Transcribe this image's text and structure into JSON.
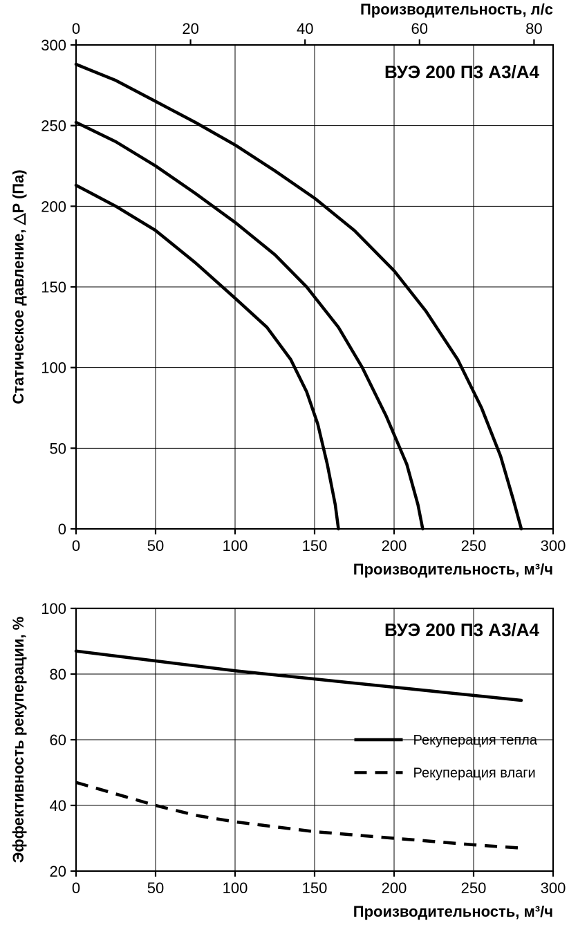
{
  "colors": {
    "background": "#ffffff",
    "axis": "#000000",
    "grid": "#000000",
    "curve": "#000000",
    "text": "#000000"
  },
  "top_chart": {
    "type": "line",
    "title": "ВУЭ 200 П3 А3/А4",
    "title_fontsize": 26,
    "title_fontweight": "bold",
    "x_bottom": {
      "label": "Производительность, м³/ч",
      "min": 0,
      "max": 300,
      "step": 50
    },
    "x_top": {
      "label": "Производительность, л/с",
      "min": 0,
      "max": 80,
      "step": 20
    },
    "y": {
      "label": "Статическое давление, △P (Па)",
      "min": 0,
      "max": 300,
      "step": 50
    },
    "axis_label_fontsize": 22,
    "tick_fontsize": 22,
    "line_width": 4.5,
    "axis_width": 2.2,
    "grid_width": 1,
    "curves": [
      {
        "name": "curve-low",
        "points": [
          [
            0,
            213
          ],
          [
            25,
            200
          ],
          [
            50,
            185
          ],
          [
            75,
            165
          ],
          [
            100,
            143
          ],
          [
            120,
            125
          ],
          [
            135,
            105
          ],
          [
            145,
            85
          ],
          [
            152,
            65
          ],
          [
            158,
            40
          ],
          [
            163,
            15
          ],
          [
            165,
            0
          ]
        ]
      },
      {
        "name": "curve-mid",
        "points": [
          [
            0,
            252
          ],
          [
            25,
            240
          ],
          [
            50,
            225
          ],
          [
            75,
            208
          ],
          [
            100,
            190
          ],
          [
            125,
            170
          ],
          [
            145,
            150
          ],
          [
            165,
            125
          ],
          [
            180,
            100
          ],
          [
            195,
            70
          ],
          [
            208,
            40
          ],
          [
            215,
            15
          ],
          [
            218,
            0
          ]
        ]
      },
      {
        "name": "curve-high",
        "points": [
          [
            0,
            288
          ],
          [
            25,
            278
          ],
          [
            50,
            265
          ],
          [
            75,
            252
          ],
          [
            100,
            238
          ],
          [
            125,
            222
          ],
          [
            150,
            205
          ],
          [
            175,
            185
          ],
          [
            200,
            160
          ],
          [
            220,
            135
          ],
          [
            240,
            105
          ],
          [
            255,
            75
          ],
          [
            267,
            45
          ],
          [
            275,
            18
          ],
          [
            280,
            0
          ]
        ]
      }
    ]
  },
  "bottom_chart": {
    "type": "line",
    "title": "ВУЭ 200 П3 А3/А4",
    "title_fontsize": 26,
    "title_fontweight": "bold",
    "x": {
      "label": "Производительность, м³/ч",
      "min": 0,
      "max": 300,
      "step": 50
    },
    "y": {
      "label": "Эффективность рекуперации, %",
      "min": 20,
      "max": 100,
      "step": 20
    },
    "axis_label_fontsize": 22,
    "tick_fontsize": 22,
    "line_width": 4.5,
    "axis_width": 2.2,
    "grid_width": 1,
    "legend": {
      "heat": "Рекуперация тепла",
      "moisture": "Рекуперация влаги",
      "fontsize": 20
    },
    "heat_curve": {
      "dash": "none",
      "points": [
        [
          0,
          87
        ],
        [
          50,
          84
        ],
        [
          100,
          81
        ],
        [
          150,
          78.5
        ],
        [
          200,
          76
        ],
        [
          250,
          73.5
        ],
        [
          280,
          72
        ]
      ]
    },
    "moisture_curve": {
      "dash": "18 12",
      "points": [
        [
          0,
          47
        ],
        [
          25,
          43.5
        ],
        [
          50,
          40
        ],
        [
          75,
          37
        ],
        [
          100,
          35
        ],
        [
          125,
          33.5
        ],
        [
          150,
          32
        ],
        [
          175,
          31
        ],
        [
          200,
          30
        ],
        [
          225,
          29
        ],
        [
          250,
          28
        ],
        [
          280,
          27
        ]
      ]
    }
  }
}
